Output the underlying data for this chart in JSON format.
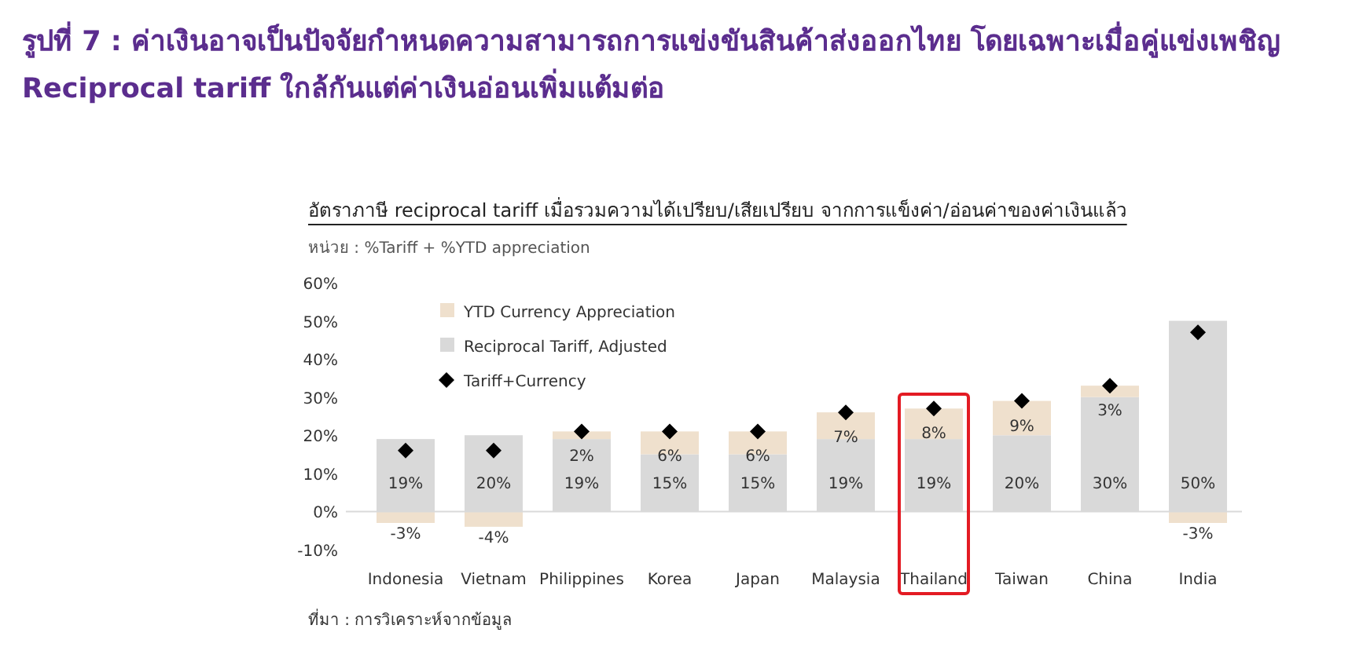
{
  "chart_data": {
    "type": "bar",
    "title": "รูปที่ 7 : ค่าเงินอาจเป็นปัจจัยกำหนดความสามารถการแข่งขันสินค้าส่งออกไทย โดยเฉพาะเมื่อคู่แข่งเพชิญ Reciprocal tariff ใกล้กันแต่ค่าเงินอ่อนเพิ่มแต้มต่อ",
    "subtitle": "อัตราภาษี reciprocal tariff เมื่อรวมความได้เปรียบ/เสียเปรียบ จากการแข็งค่า/อ่อนค่าของค่าเงินแล้ว",
    "annotations": [
      "หน่วย : %Tariff + %YTD appreciation",
      "ที่มา : การวิเคราะห์จากข้อมูล"
    ],
    "categories": [
      "Indonesia",
      "Vietnam",
      "Philippines",
      "Korea",
      "Japan",
      "Malaysia",
      "Thailand",
      "Taiwan",
      "China",
      "India"
    ],
    "stacked": true,
    "legend": "top left",
    "ylim": [
      -10,
      60
    ],
    "yticks": [
      {
        "value": -10,
        "label": "-10%"
      },
      {
        "value": 0,
        "label": "0%"
      },
      {
        "value": 10,
        "label": "10%"
      },
      {
        "value": 20,
        "label": "20%"
      },
      {
        "value": 30,
        "label": "30%"
      },
      {
        "value": 40,
        "label": "40%"
      },
      {
        "value": 50,
        "label": "50%"
      },
      {
        "value": 60,
        "label": "60%"
      }
    ],
    "series": [
      {
        "name": "Reciprocal Tariff, Adjusted",
        "color": "#d9d9d9",
        "values": [
          19,
          20,
          19,
          15,
          15,
          19,
          19,
          20,
          30,
          50
        ],
        "value_labels": [
          "19%",
          "20%",
          "19%",
          "15%",
          "15%",
          "19%",
          "19%",
          "20%",
          "30%",
          "50%"
        ]
      },
      {
        "name": "YTD Currency Appreciation",
        "color": "#efe0cd",
        "values": [
          -3,
          -4,
          2,
          6,
          6,
          7,
          8,
          9,
          3,
          -3
        ],
        "value_labels": [
          "-3%",
          "-4%",
          "2%",
          "6%",
          "6%",
          "7%",
          "8%",
          "9%",
          "3%",
          "-3%"
        ]
      },
      {
        "name": "Tariff+Currency",
        "type": "scatter",
        "marker": "diamond",
        "color": "#000000",
        "values": [
          16,
          16,
          21,
          21,
          21,
          26,
          27,
          29,
          33,
          47
        ]
      }
    ]
  }
}
